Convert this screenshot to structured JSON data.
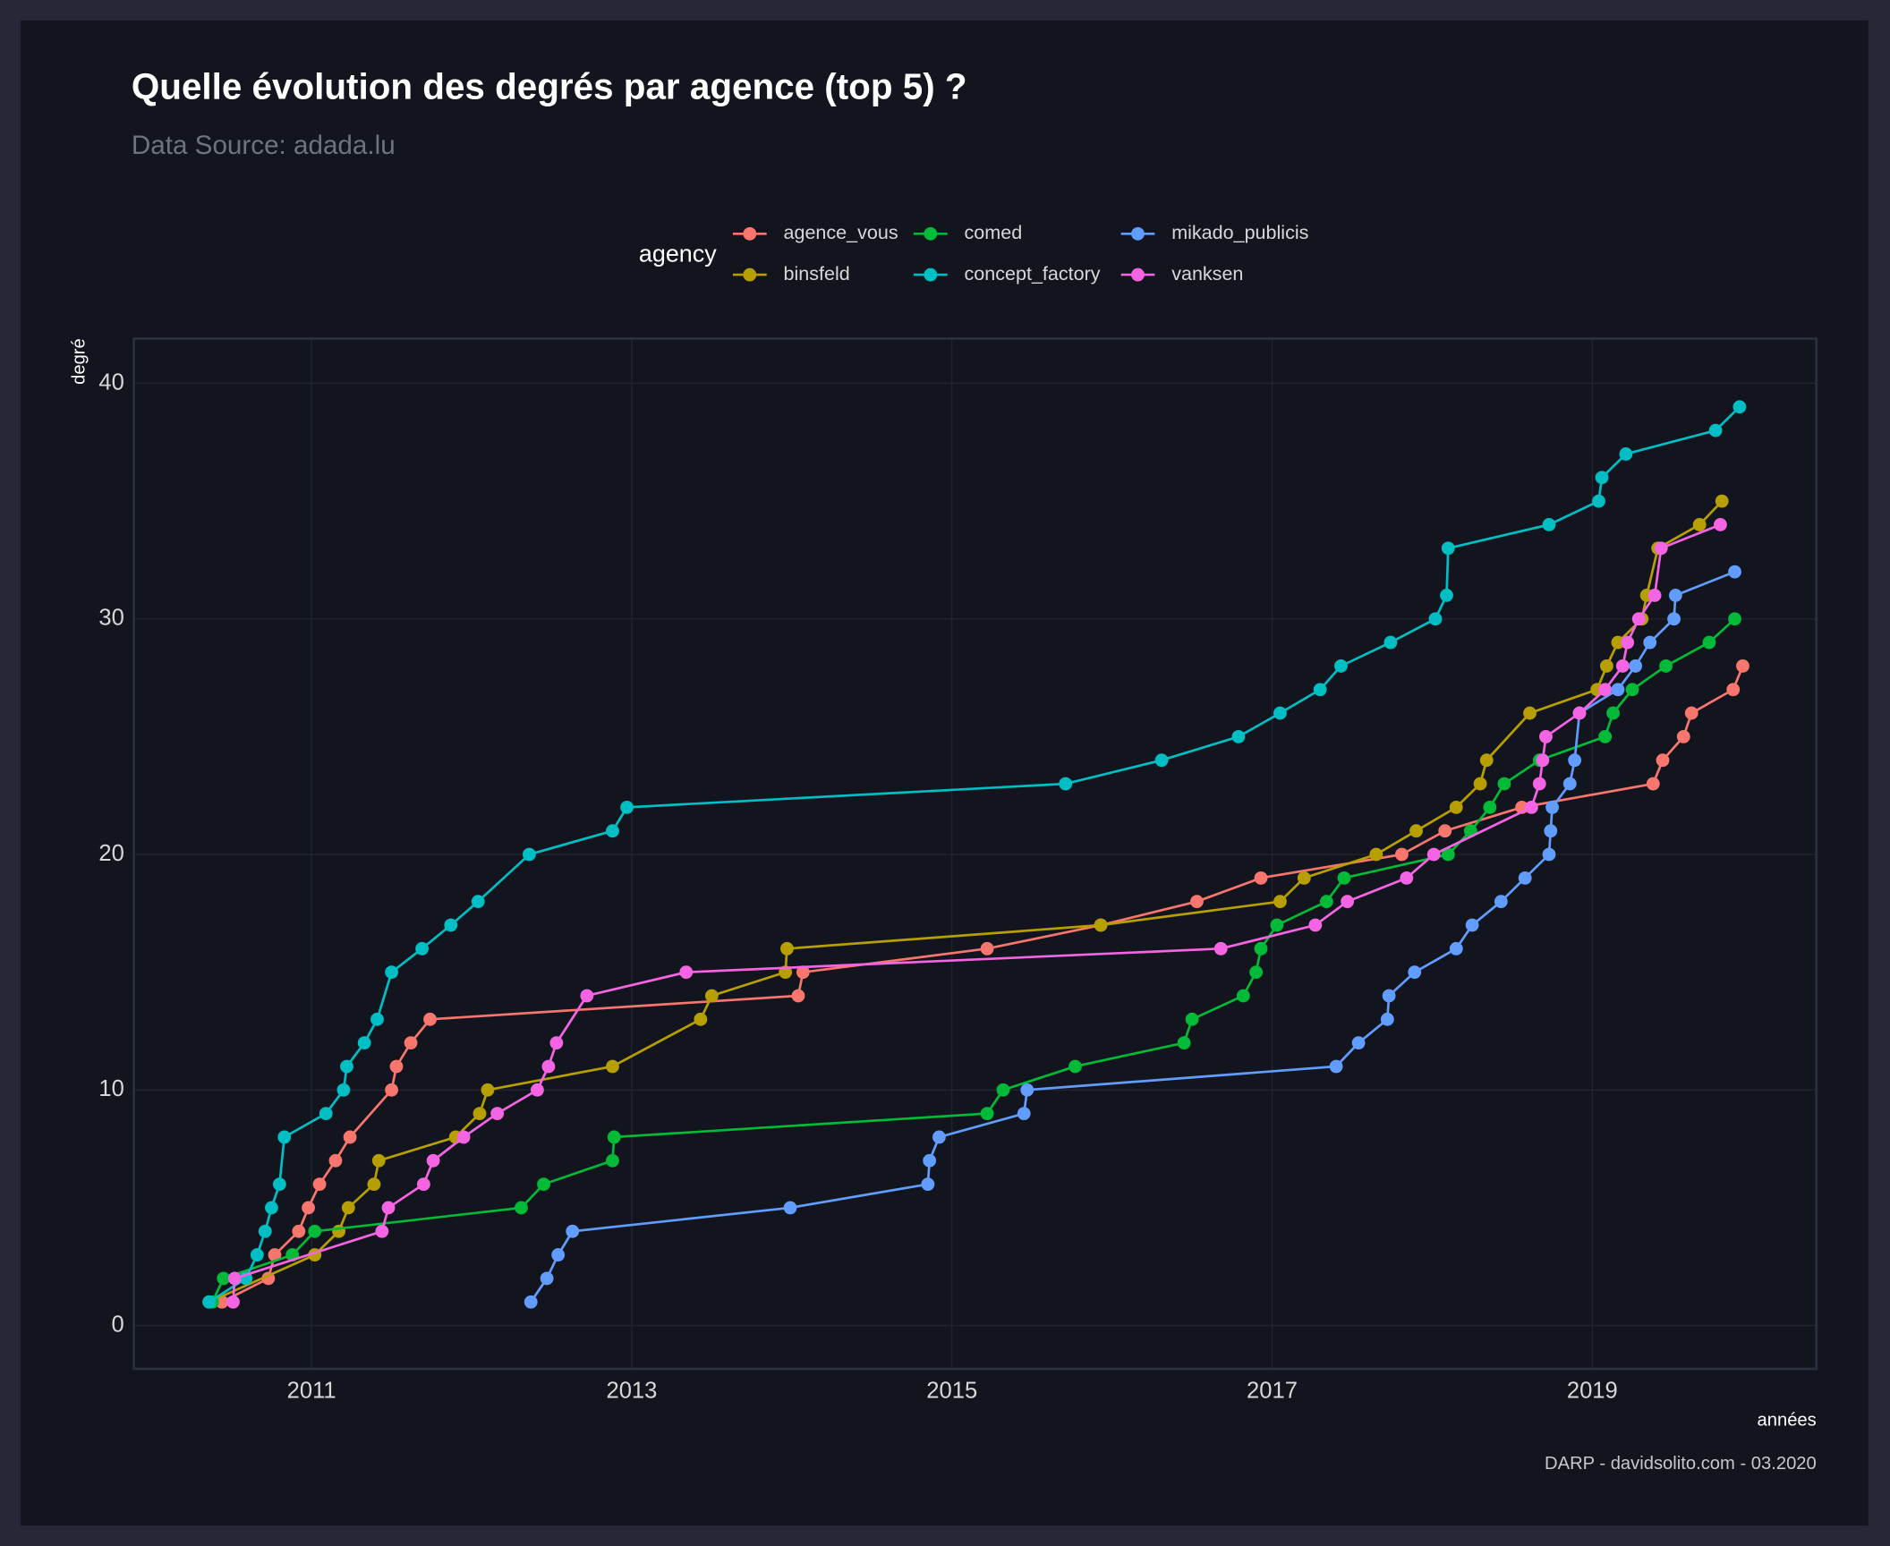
{
  "chart_data": {
    "type": "line",
    "title": "Quelle évolution des degrés par agence (top 5) ?",
    "subtitle": "Data Source: adada.lu",
    "caption": "DARP - davidsolito.com - 03.2020",
    "xlabel": "années",
    "ylabel": "degré",
    "legend_title": "agency",
    "legend": "top",
    "grid": true,
    "xlim": [
      2009.89,
      2020.4
    ],
    "xticks": [
      2011,
      2013,
      2015,
      2017,
      2019
    ],
    "ylim": [
      -1.84,
      41.9
    ],
    "yticks": [
      0,
      10,
      20,
      30,
      40
    ],
    "series": [
      {
        "name": "agence_vous",
        "color": "#f8766d",
        "x": [
          2010.44,
          2010.73,
          2010.77,
          2010.92,
          2010.98,
          2011.05,
          2011.15,
          2011.24,
          2011.5,
          2011.53,
          2011.62,
          2011.74,
          2014.04,
          2014.07,
          2015.22,
          2015.93,
          2016.53,
          2016.93,
          2017.81,
          2018.08,
          2018.56,
          2019.38,
          2019.44,
          2019.57,
          2019.62,
          2019.88,
          2019.94
        ],
        "values": [
          1,
          2,
          3,
          4,
          5,
          6,
          7,
          8,
          10,
          11,
          12,
          13,
          14,
          15,
          16,
          17,
          18,
          19,
          20,
          21,
          22,
          23,
          24,
          25,
          26,
          27,
          28
        ]
      },
      {
        "name": "binsfeld",
        "color": "#b79f00",
        "x": [
          2010.36,
          2011.02,
          2011.17,
          2011.23,
          2011.39,
          2011.42,
          2011.9,
          2012.05,
          2012.1,
          2012.88,
          2013.43,
          2013.5,
          2013.96,
          2013.97,
          2015.93,
          2017.05,
          2017.2,
          2017.65,
          2017.9,
          2018.15,
          2018.3,
          2018.34,
          2018.61,
          2019.03,
          2019.09,
          2019.16,
          2019.31,
          2019.34,
          2019.41,
          2019.67,
          2019.81
        ],
        "values": [
          1,
          3,
          4,
          5,
          6,
          7,
          8,
          9,
          10,
          11,
          13,
          14,
          15,
          16,
          17,
          18,
          19,
          20,
          21,
          22,
          23,
          24,
          26,
          27,
          28,
          29,
          30,
          31,
          33,
          34,
          35
        ]
      },
      {
        "name": "comed",
        "color": "#00ba38",
        "x": [
          2010.38,
          2010.45,
          2010.88,
          2011.02,
          2012.31,
          2012.45,
          2012.88,
          2012.89,
          2015.22,
          2015.32,
          2015.77,
          2016.45,
          2016.5,
          2016.82,
          2016.9,
          2016.93,
          2017.03,
          2017.34,
          2017.45,
          2018.1,
          2018.24,
          2018.36,
          2018.45,
          2018.67,
          2019.08,
          2019.13,
          2019.25,
          2019.46,
          2019.73,
          2019.89
        ],
        "values": [
          1,
          2,
          3,
          4,
          5,
          6,
          7,
          8,
          9,
          10,
          11,
          12,
          13,
          14,
          15,
          16,
          17,
          18,
          19,
          20,
          21,
          22,
          23,
          24,
          25,
          26,
          27,
          28,
          29,
          30
        ]
      },
      {
        "name": "concept_factory",
        "color": "#00bfc4",
        "x": [
          2010.36,
          2010.59,
          2010.66,
          2010.71,
          2010.75,
          2010.8,
          2010.83,
          2011.09,
          2011.2,
          2011.22,
          2011.33,
          2011.41,
          2011.5,
          2011.69,
          2011.87,
          2012.04,
          2012.36,
          2012.88,
          2012.97,
          2015.71,
          2016.31,
          2016.79,
          2017.05,
          2017.3,
          2017.43,
          2017.74,
          2018.02,
          2018.09,
          2018.1,
          2018.73,
          2019.04,
          2019.06,
          2019.21,
          2019.77,
          2019.92
        ],
        "values": [
          1,
          2,
          3,
          4,
          5,
          6,
          8,
          9,
          10,
          11,
          12,
          13,
          15,
          16,
          17,
          18,
          20,
          21,
          22,
          23,
          24,
          25,
          26,
          27,
          28,
          29,
          30,
          31,
          33,
          34,
          35,
          36,
          37,
          38,
          39
        ]
      },
      {
        "name": "mikado_publicis",
        "color": "#619cff",
        "x": [
          2012.37,
          2012.47,
          2012.54,
          2012.63,
          2013.99,
          2014.85,
          2014.86,
          2014.92,
          2015.45,
          2015.47,
          2017.4,
          2017.54,
          2017.72,
          2017.73,
          2017.89,
          2018.15,
          2018.25,
          2018.43,
          2018.58,
          2018.73,
          2018.74,
          2018.75,
          2018.86,
          2018.89,
          2018.92,
          2019.16,
          2019.27,
          2019.36,
          2019.51,
          2019.52,
          2019.89
        ],
        "values": [
          1,
          2,
          3,
          4,
          5,
          6,
          7,
          8,
          9,
          10,
          11,
          12,
          13,
          14,
          15,
          16,
          17,
          18,
          19,
          20,
          21,
          22,
          23,
          24,
          26,
          27,
          28,
          29,
          30,
          31,
          32
        ]
      },
      {
        "name": "vanksen",
        "color": "#f564e3",
        "x": [
          2010.51,
          2010.52,
          2011.44,
          2011.48,
          2011.7,
          2011.76,
          2011.95,
          2012.16,
          2012.41,
          2012.48,
          2012.53,
          2012.72,
          2013.34,
          2016.68,
          2017.27,
          2017.47,
          2017.84,
          2018.01,
          2018.62,
          2018.67,
          2018.69,
          2018.71,
          2018.92,
          2019.08,
          2019.19,
          2019.22,
          2019.29,
          2019.39,
          2019.43,
          2019.8
        ],
        "values": [
          1,
          2,
          4,
          5,
          6,
          7,
          8,
          9,
          10,
          11,
          12,
          14,
          15,
          16,
          17,
          18,
          19,
          20,
          22,
          23,
          24,
          25,
          26,
          27,
          28,
          29,
          30,
          31,
          33,
          34
        ]
      }
    ]
  }
}
